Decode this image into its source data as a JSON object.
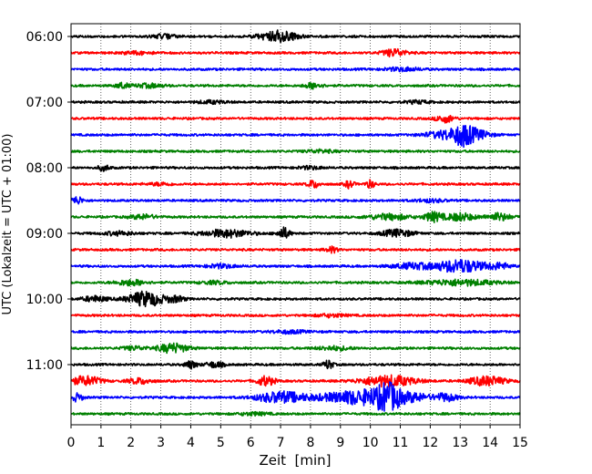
{
  "chart_data": {
    "type": "line",
    "title": "",
    "xlabel": "Zeit  [min]",
    "ylabel": "UTC (Lokalzeit = UTC + 01:00)",
    "xlim": [
      0,
      15
    ],
    "x_ticks": [
      "0",
      "1",
      "2",
      "3",
      "4",
      "5",
      "6",
      "7",
      "8",
      "9",
      "10",
      "11",
      "12",
      "13",
      "14",
      "15"
    ],
    "y_tick_labels": [
      "06:00",
      "07:00",
      "08:00",
      "09:00",
      "10:00",
      "11:00"
    ],
    "trace_interval_min": 15,
    "start_time": "06:00",
    "grid": "vertical-dotted",
    "trace_colors": [
      "#000000",
      "#ff0000",
      "#0000ff",
      "#008000"
    ],
    "traces": [
      {
        "time": "06:00",
        "color": "#000000",
        "events": [
          {
            "t": 6.9,
            "amp": 6,
            "w": 0.6
          },
          {
            "t": 3.1,
            "amp": 2,
            "w": 0.4
          }
        ]
      },
      {
        "time": "06:15",
        "color": "#ff0000",
        "events": [
          {
            "t": 10.8,
            "amp": 4,
            "w": 0.4
          },
          {
            "t": 2.2,
            "amp": 1.5,
            "w": 0.5
          }
        ]
      },
      {
        "time": "06:30",
        "color": "#0000ff",
        "events": [
          {
            "t": 11.1,
            "amp": 1.8,
            "w": 0.6
          }
        ]
      },
      {
        "time": "06:45",
        "color": "#008000",
        "events": [
          {
            "t": 1.7,
            "amp": 3,
            "w": 0.2
          },
          {
            "t": 2.6,
            "amp": 2,
            "w": 0.5
          },
          {
            "t": 8.1,
            "amp": 3,
            "w": 0.3
          }
        ]
      },
      {
        "time": "07:00",
        "color": "#000000",
        "events": [
          {
            "t": 4.7,
            "amp": 1.5,
            "w": 0.5
          },
          {
            "t": 11.6,
            "amp": 1.5,
            "w": 0.4
          }
        ]
      },
      {
        "time": "07:15",
        "color": "#ff0000",
        "events": [
          {
            "t": 12.5,
            "amp": 4,
            "w": 0.3
          }
        ]
      },
      {
        "time": "07:30",
        "color": "#0000ff",
        "events": [
          {
            "t": 12.7,
            "amp": 5,
            "w": 0.8
          },
          {
            "t": 13.1,
            "amp": 8,
            "w": 0.3
          },
          {
            "t": 13.6,
            "amp": 4,
            "w": 0.4
          }
        ]
      },
      {
        "time": "07:45",
        "color": "#008000",
        "events": [
          {
            "t": 8.3,
            "amp": 1.5,
            "w": 0.5
          }
        ]
      },
      {
        "time": "08:00",
        "color": "#000000",
        "events": [
          {
            "t": 1.1,
            "amp": 3,
            "w": 0.2
          },
          {
            "t": 8.0,
            "amp": 1.5,
            "w": 0.4
          }
        ]
      },
      {
        "time": "08:15",
        "color": "#ff0000",
        "events": [
          {
            "t": 8.1,
            "amp": 4,
            "w": 0.2
          },
          {
            "t": 9.3,
            "amp": 4,
            "w": 0.15
          },
          {
            "t": 10.0,
            "amp": 4,
            "w": 0.15
          },
          {
            "t": 3.0,
            "amp": 1.5,
            "w": 0.4
          }
        ]
      },
      {
        "time": "08:30",
        "color": "#0000ff",
        "events": [
          {
            "t": 0.2,
            "amp": 4,
            "w": 0.2
          },
          {
            "t": 12.0,
            "amp": 1.5,
            "w": 0.5
          }
        ]
      },
      {
        "time": "08:45",
        "color": "#008000",
        "events": [
          {
            "t": 2.4,
            "amp": 2.5,
            "w": 0.4
          },
          {
            "t": 10.6,
            "amp": 3,
            "w": 0.7
          },
          {
            "t": 12.1,
            "amp": 5,
            "w": 0.3
          },
          {
            "t": 13.0,
            "amp": 4,
            "w": 0.5
          },
          {
            "t": 14.3,
            "amp": 4,
            "w": 0.4
          }
        ]
      },
      {
        "time": "09:00",
        "color": "#000000",
        "events": [
          {
            "t": 5.2,
            "amp": 4,
            "w": 0.8
          },
          {
            "t": 7.1,
            "amp": 6,
            "w": 0.2
          },
          {
            "t": 10.9,
            "amp": 4,
            "w": 0.5
          },
          {
            "t": 1.6,
            "amp": 2,
            "w": 0.5
          }
        ]
      },
      {
        "time": "09:15",
        "color": "#ff0000",
        "events": [
          {
            "t": 8.7,
            "amp": 3,
            "w": 0.2
          }
        ]
      },
      {
        "time": "09:30",
        "color": "#0000ff",
        "events": [
          {
            "t": 13.0,
            "amp": 7,
            "w": 0.8
          },
          {
            "t": 11.4,
            "amp": 3,
            "w": 0.7
          },
          {
            "t": 5.0,
            "amp": 2,
            "w": 0.5
          },
          {
            "t": 14.3,
            "amp": 3,
            "w": 0.4
          }
        ]
      },
      {
        "time": "09:45",
        "color": "#008000",
        "events": [
          {
            "t": 2.0,
            "amp": 3,
            "w": 0.5
          },
          {
            "t": 13.0,
            "amp": 3,
            "w": 1.2
          },
          {
            "t": 4.8,
            "amp": 1.5,
            "w": 0.5
          }
        ]
      },
      {
        "time": "10:00",
        "color": "#000000",
        "events": [
          {
            "t": 2.5,
            "amp": 8,
            "w": 0.6
          },
          {
            "t": 0.8,
            "amp": 3,
            "w": 0.4
          },
          {
            "t": 3.5,
            "amp": 3,
            "w": 0.3
          }
        ]
      },
      {
        "time": "10:15",
        "color": "#ff0000",
        "events": [
          {
            "t": 8.7,
            "amp": 1.5,
            "w": 0.5
          }
        ]
      },
      {
        "time": "10:30",
        "color": "#0000ff",
        "events": [
          {
            "t": 7.3,
            "amp": 1.5,
            "w": 0.6
          }
        ]
      },
      {
        "time": "10:45",
        "color": "#008000",
        "events": [
          {
            "t": 3.4,
            "amp": 5,
            "w": 0.5
          },
          {
            "t": 2.1,
            "amp": 2,
            "w": 0.4
          },
          {
            "t": 8.8,
            "amp": 2,
            "w": 0.6
          }
        ]
      },
      {
        "time": "11:00",
        "color": "#000000",
        "events": [
          {
            "t": 4.0,
            "amp": 4,
            "w": 0.2
          },
          {
            "t": 4.8,
            "amp": 3,
            "w": 0.3
          },
          {
            "t": 8.6,
            "amp": 5,
            "w": 0.15
          }
        ]
      },
      {
        "time": "11:15",
        "color": "#ff0000",
        "events": [
          {
            "t": 0.5,
            "amp": 5,
            "w": 0.5
          },
          {
            "t": 2.3,
            "amp": 3,
            "w": 0.4
          },
          {
            "t": 6.5,
            "amp": 5,
            "w": 0.3
          },
          {
            "t": 10.6,
            "amp": 6,
            "w": 0.9
          },
          {
            "t": 13.9,
            "amp": 5,
            "w": 0.6
          }
        ]
      },
      {
        "time": "11:30",
        "color": "#0000ff",
        "events": [
          {
            "t": 7.0,
            "amp": 6,
            "w": 0.8
          },
          {
            "t": 9.8,
            "amp": 8,
            "w": 1.4
          },
          {
            "t": 10.6,
            "amp": 11,
            "w": 0.4
          },
          {
            "t": 11.5,
            "amp": 3,
            "w": 0.4
          },
          {
            "t": 12.5,
            "amp": 4,
            "w": 0.4
          },
          {
            "t": 0.2,
            "amp": 4,
            "w": 0.2
          }
        ]
      },
      {
        "time": "11:45",
        "color": "#008000",
        "events": [
          {
            "t": 6.1,
            "amp": 1.5,
            "w": 0.5
          }
        ]
      }
    ]
  }
}
